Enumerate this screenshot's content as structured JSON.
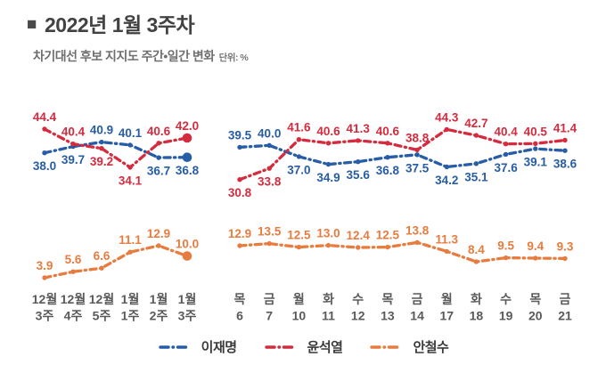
{
  "header": {
    "bullet": "■",
    "title": "2022년 1월 3주차",
    "subtitle": "차기대선 후보 지지도 주간•일간 변화",
    "unit_note": "단위: %"
  },
  "colors": {
    "lee": "#275da6",
    "yoon": "#d42b3e",
    "ahn": "#e87c3e",
    "axis_text": "#5a5a5a"
  },
  "legend": [
    {
      "key": "lee",
      "label": "이재명"
    },
    {
      "key": "yoon",
      "label": "윤석열"
    },
    {
      "key": "ahn",
      "label": "안철수"
    }
  ],
  "chart_data": [
    {
      "type": "line",
      "panel": "weekly",
      "title": "차기대선 후보 지지도 주간 변화",
      "line_style": "dash-dot",
      "last_point_emphasized": true,
      "grid": false,
      "ylim_top_chart": [
        30,
        45
      ],
      "ylim_bottom_chart": [
        2,
        15
      ],
      "categories": [
        [
          "12월",
          "3주"
        ],
        [
          "12월",
          "4주"
        ],
        [
          "12월",
          "5주"
        ],
        [
          "1월",
          "1주"
        ],
        [
          "1월",
          "2주"
        ],
        [
          "1월",
          "3주"
        ]
      ],
      "series": [
        {
          "name": "이재명",
          "key": "lee",
          "values": [
            38.0,
            39.7,
            40.9,
            40.1,
            36.7,
            36.8
          ]
        },
        {
          "name": "윤석열",
          "key": "yoon",
          "values": [
            44.4,
            40.4,
            39.2,
            34.1,
            40.6,
            42.0
          ]
        },
        {
          "name": "안철수",
          "key": "ahn",
          "values": [
            3.9,
            5.6,
            6.6,
            11.1,
            12.9,
            10.0
          ]
        }
      ]
    },
    {
      "type": "line",
      "panel": "daily",
      "title": "차기대선 후보 지지도 일간 변화",
      "line_style": "dash-dot",
      "last_point_emphasized": false,
      "grid": false,
      "ylim_top_chart": [
        30,
        45
      ],
      "ylim_bottom_chart": [
        2,
        15
      ],
      "categories": [
        [
          "목",
          "6"
        ],
        [
          "금",
          "7"
        ],
        [
          "월",
          "10"
        ],
        [
          "화",
          "11"
        ],
        [
          "수",
          "12"
        ],
        [
          "목",
          "13"
        ],
        [
          "금",
          "14"
        ],
        [
          "월",
          "17"
        ],
        [
          "화",
          "18"
        ],
        [
          "수",
          "19"
        ],
        [
          "목",
          "20"
        ],
        [
          "금",
          "21"
        ]
      ],
      "series": [
        {
          "name": "이재명",
          "key": "lee",
          "values": [
            39.5,
            40.0,
            37.0,
            34.9,
            35.6,
            36.8,
            37.5,
            34.2,
            35.1,
            37.6,
            39.1,
            38.6
          ]
        },
        {
          "name": "윤석열",
          "key": "yoon",
          "values": [
            30.8,
            33.8,
            41.6,
            40.6,
            41.3,
            40.6,
            38.8,
            44.3,
            42.7,
            40.4,
            40.5,
            41.4
          ]
        },
        {
          "name": "안철수",
          "key": "ahn",
          "values": [
            12.9,
            13.5,
            12.5,
            13.0,
            12.4,
            12.5,
            13.8,
            11.3,
            8.4,
            9.5,
            9.4,
            9.3
          ]
        }
      ]
    }
  ]
}
